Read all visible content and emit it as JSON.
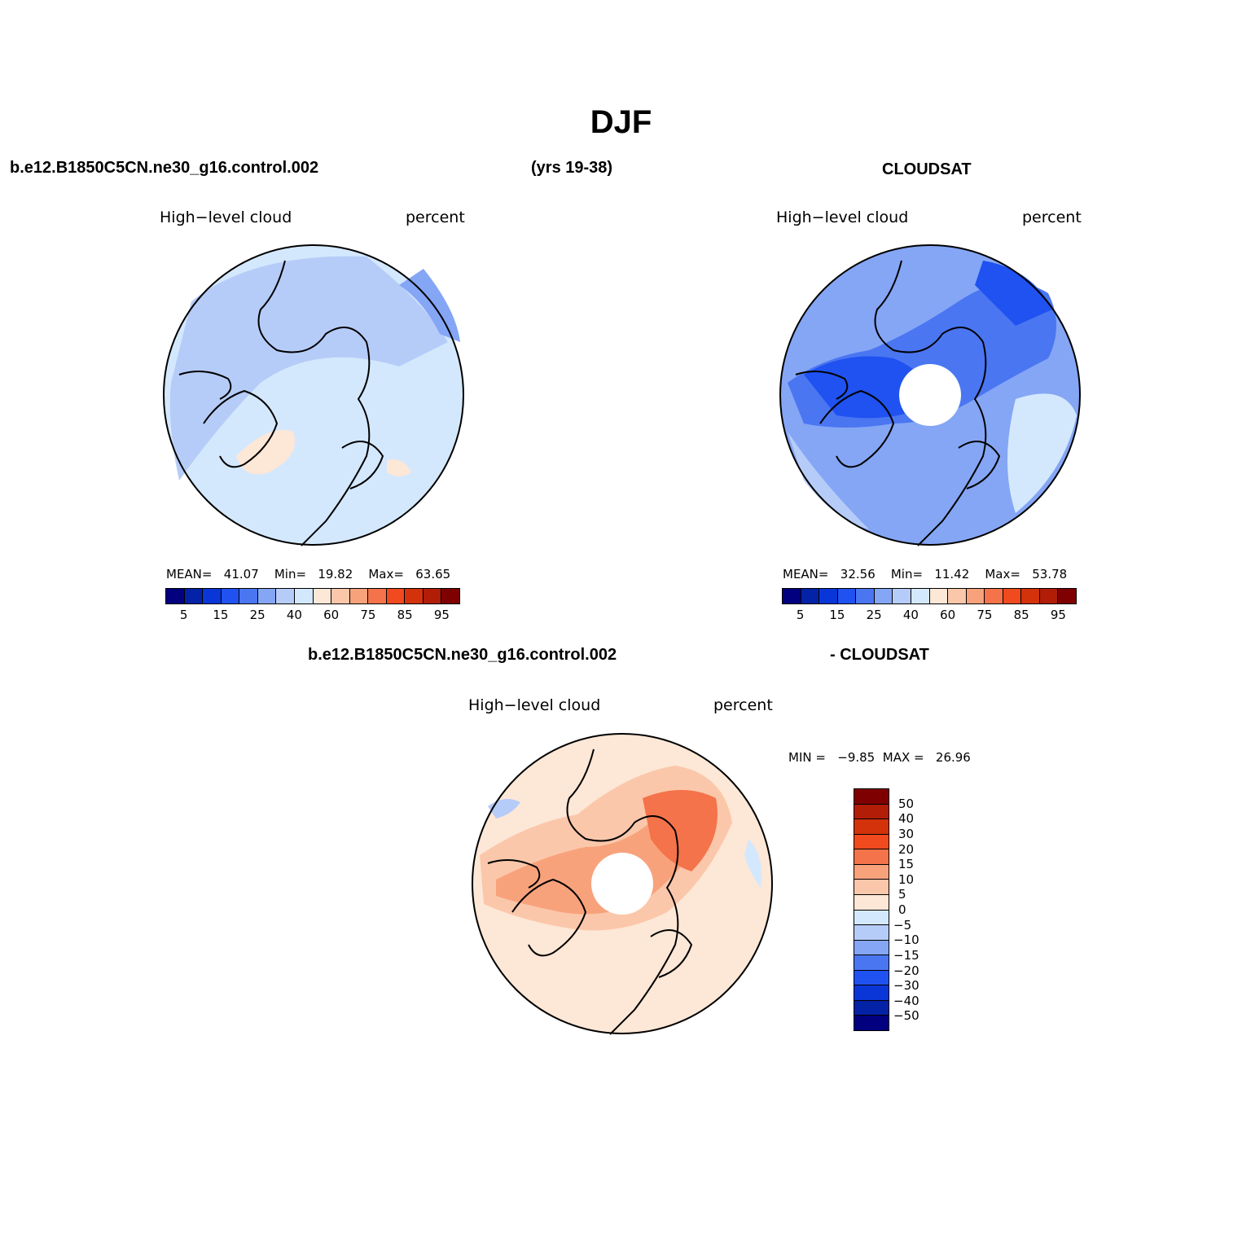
{
  "title": "DJF",
  "headers": {
    "case_name": "b.e12.B1850C5CN.ne30_g16.control.002",
    "years": "(yrs 19-38)",
    "obs_name": "CLOUDSAT",
    "diff_case": "b.e12.B1850C5CN.ne30_g16.control.002",
    "diff_obs": "- CLOUDSAT"
  },
  "panels": [
    {
      "variable": "High−level cloud",
      "units": "percent",
      "stats": {
        "mean_label": "MEAN=",
        "mean": "41.07",
        "min_label": "Min=",
        "min": "19.82",
        "max_label": "Max=",
        "max": "63.65"
      },
      "base_color": "#d4e8fd",
      "has_hole": false
    },
    {
      "variable": "High−level cloud",
      "units": "percent",
      "stats": {
        "mean_label": "MEAN=",
        "mean": "32.56",
        "min_label": "Min=",
        "min": "11.42",
        "max_label": "Max=",
        "max": "53.78"
      },
      "base_color": "#7ea4f4",
      "has_hole": true
    },
    {
      "variable": "High−level cloud",
      "units": "percent",
      "stats": {
        "min_label": "MIN =",
        "min": "−9.85",
        "max_label": "MAX =",
        "max": "26.96"
      },
      "base_color": "#fcd7bf",
      "has_hole": true
    }
  ],
  "colorbar_main": {
    "colors": [
      "#02007f",
      "#0422a6",
      "#0a36d8",
      "#1f52f0",
      "#4a76f2",
      "#85a6f5",
      "#b6ccf8",
      "#d4e8fd",
      "#fde7d6",
      "#fbc7aa",
      "#f8a27c",
      "#f4734a",
      "#f04a1e",
      "#d3320b",
      "#b21d08",
      "#7f0000"
    ],
    "tick_labels": [
      "5",
      "15",
      "25",
      "40",
      "60",
      "75",
      "85",
      "95"
    ]
  },
  "colorbar_diff": {
    "colors": [
      "#7f0000",
      "#b21d08",
      "#d3320b",
      "#f04a1e",
      "#f4734a",
      "#f8a27c",
      "#fbc7aa",
      "#fde7d6",
      "#d4e8fd",
      "#b6ccf8",
      "#85a6f5",
      "#4a76f2",
      "#1f52f0",
      "#0a36d8",
      "#0422a6",
      "#02007f"
    ],
    "tick_labels": [
      "50",
      "40",
      "30",
      "20",
      "15",
      "10",
      "5",
      "0",
      "−5",
      "−10",
      "−15",
      "−20",
      "−30",
      "−40",
      "−50"
    ]
  }
}
